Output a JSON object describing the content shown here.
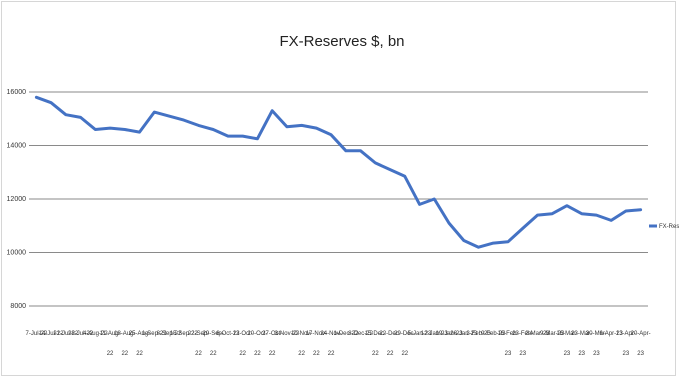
{
  "chart_data": {
    "type": "line",
    "title": "FX-Reserves $, bn",
    "xlabel": "",
    "ylabel": "",
    "ylim": [
      8000,
      16000
    ],
    "yticks": [
      8000,
      10000,
      12000,
      14000,
      16000
    ],
    "ytick_labels": [
      "8000",
      "10000",
      "12000",
      "14000",
      "16000"
    ],
    "grid": true,
    "legend_position": "right",
    "color": "#4472c4",
    "x": [
      "7-Jul-22",
      "14-Jul-22",
      "21-Jul-22",
      "28-Jul-22",
      "4-Aug-22",
      "11-Aug-22",
      "18-Aug-22",
      "25-Aug-22",
      "1-Sep-22",
      "8-Sep-22",
      "15-Sep-22",
      "22-Sep-22",
      "29-Sep-22",
      "6-Oct-22",
      "13-Oct-22",
      "20-Oct-22",
      "27-Oct-22",
      "3-Nov-22",
      "10-Nov-22",
      "17-Nov-22",
      "24-Nov-22",
      "1-Dec-22",
      "8-Dec-22",
      "15-Dec-22",
      "22-Dec-22",
      "29-Dec-22",
      "5-Jan-23",
      "12-Jan-23",
      "19-Jan-23",
      "26-Jan-23",
      "2-Feb-23",
      "9-Feb-23",
      "16-Feb-23",
      "23-Feb-23",
      "2-Mar-23",
      "9-Mar-23",
      "16-Mar-23",
      "23-Mar-23",
      "30-Mar-23",
      "6-Apr-23",
      "13-Apr-23",
      "20-Apr-23"
    ],
    "xtick_labels": [
      [
        "7-Jul-22"
      ],
      [
        "14-Jul-22"
      ],
      [
        "21-Jul-22"
      ],
      [
        "28-Jul-22"
      ],
      [
        "4-Aug-22"
      ],
      [
        "11-Aug-",
        "22"
      ],
      [
        "18-Aug-",
        "22"
      ],
      [
        "25-Aug-",
        "22"
      ],
      [
        "1-Sep-22"
      ],
      [
        "8-Sep-22"
      ],
      [
        "15-Sep-22"
      ],
      [
        "22-Sep-",
        "22"
      ],
      [
        "29-Sep-",
        "22"
      ],
      [
        "6-Oct-22"
      ],
      [
        "13-Oct-",
        "22"
      ],
      [
        "20-Oct-",
        "22"
      ],
      [
        "27-Oct-",
        "22"
      ],
      [
        "3-Nov-22"
      ],
      [
        "10-Nov-",
        "22"
      ],
      [
        "17-Nov-",
        "22"
      ],
      [
        "24-Nov-",
        "22"
      ],
      [
        "1-Dec-22"
      ],
      [
        "8-Dec-22"
      ],
      [
        "15-Dec-",
        "22"
      ],
      [
        "22-Dec-",
        "22"
      ],
      [
        "29-Dec-",
        "22"
      ],
      [
        "5-Jan-23"
      ],
      [
        "12-Jan-23"
      ],
      [
        "19-Jan-23"
      ],
      [
        "26-Jan-23"
      ],
      [
        "2-Feb-23"
      ],
      [
        "9-Feb-23"
      ],
      [
        "16-Feb-",
        "23"
      ],
      [
        "23-Feb-",
        "23"
      ],
      [
        "2-Mar-23"
      ],
      [
        "9-Mar-23"
      ],
      [
        "16-Mar-",
        "23"
      ],
      [
        "23-Mar-",
        "23"
      ],
      [
        "30-Mar-",
        "23"
      ],
      [
        "6-Apr-23"
      ],
      [
        "13-Apr-",
        "23"
      ],
      [
        "20-Apr-",
        "23"
      ]
    ],
    "series": [
      {
        "name": "FX-Reserves",
        "values": [
          15800,
          15600,
          15150,
          15050,
          14600,
          14650,
          14600,
          14500,
          15250,
          15100,
          14950,
          14750,
          14600,
          14350,
          14350,
          14250,
          15300,
          14700,
          14750,
          14650,
          14400,
          13800,
          13800,
          13350,
          13100,
          12850,
          11800,
          12000,
          11100,
          10450,
          10200,
          10350,
          10400,
          10900,
          11400,
          11450,
          11750,
          11450,
          11400,
          11200,
          11550,
          11600
        ]
      }
    ]
  }
}
